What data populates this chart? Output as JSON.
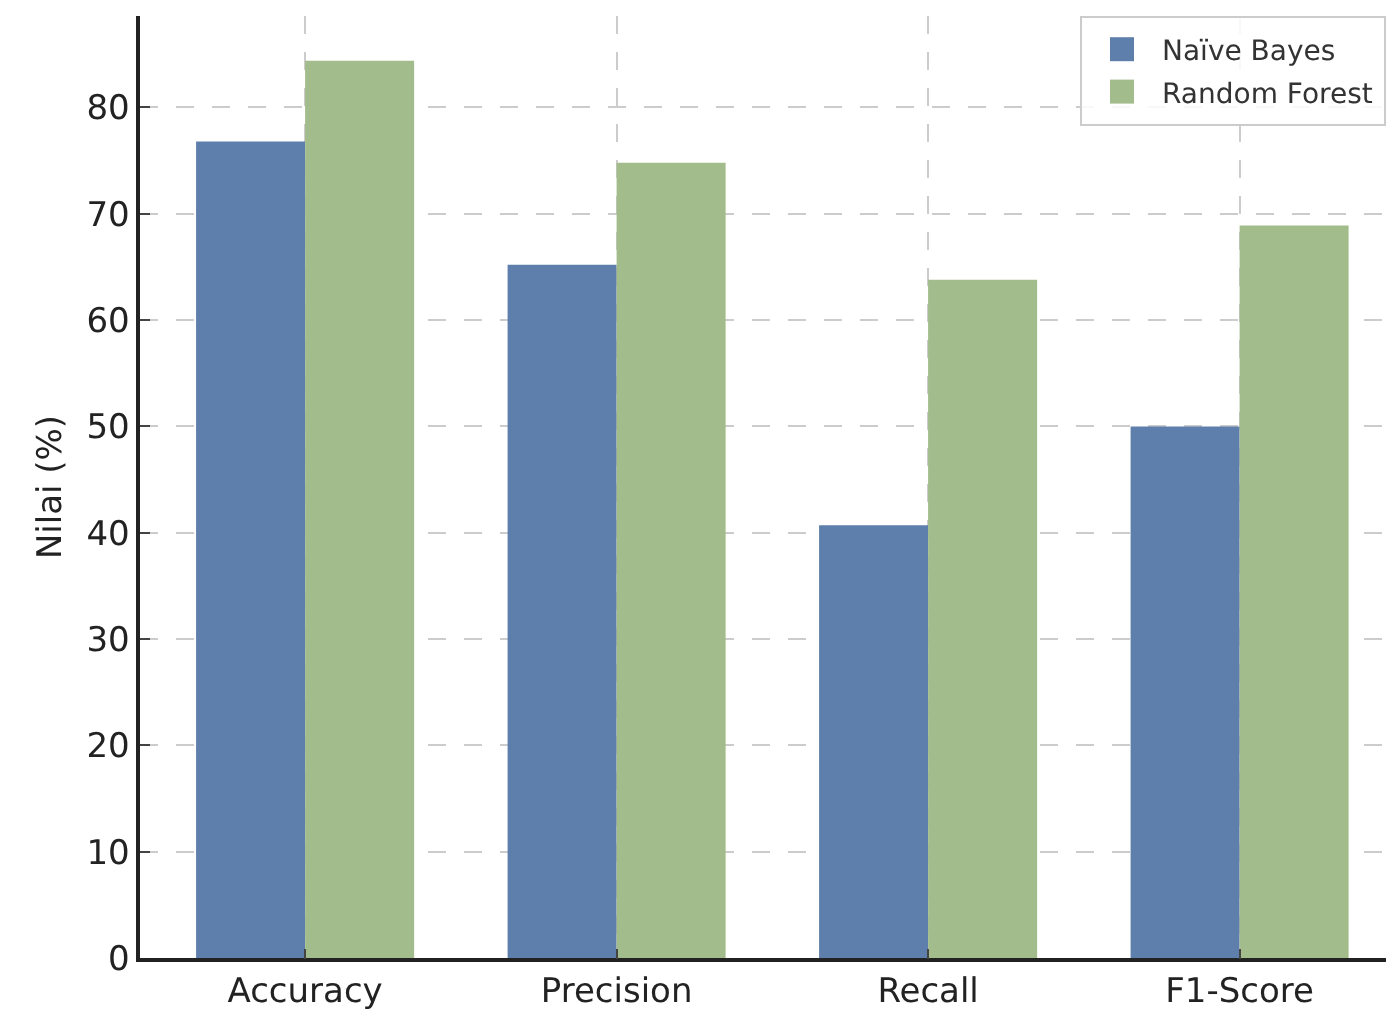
{
  "chart_data": {
    "type": "bar",
    "ylabel": "Nilai (%)",
    "categories": [
      "Accuracy",
      "Precision",
      "Recall",
      "F1-Score"
    ],
    "series": [
      {
        "name": "Naïve Bayes",
        "color": "#5e7fab",
        "values": [
          76.8,
          65.2,
          40.7,
          50.0
        ]
      },
      {
        "name": "Random Forest",
        "color": "#a3bc8b",
        "values": [
          84.4,
          74.8,
          63.8,
          68.9
        ]
      }
    ],
    "ylim": [
      0,
      88.6
    ],
    "yticks": [
      0,
      10,
      20,
      30,
      40,
      50,
      60,
      70,
      80
    ],
    "grid": true,
    "legend": "top right"
  }
}
